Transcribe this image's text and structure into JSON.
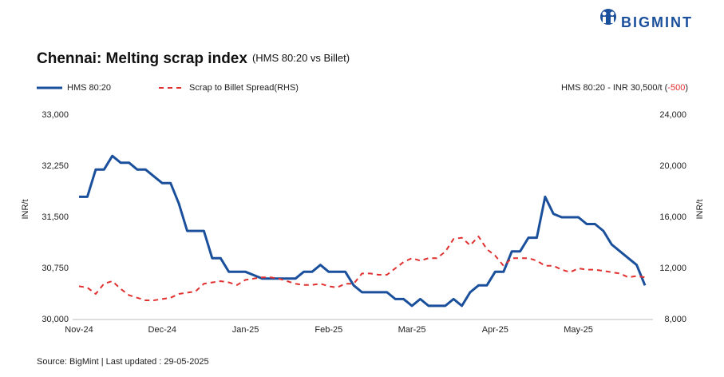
{
  "chart_data": {
    "type": "line",
    "logo": "BIGMINT",
    "title": "Chennai: Melting scrap index",
    "subtitle": "(HMS 80:20 vs Billet)",
    "annotation": {
      "text": "HMS 80:20 - INR 30,500/t (",
      "change": "-500",
      "close": ")"
    },
    "y_label": "INR/t",
    "y2_label": "INR/t",
    "source": "Source: BigMint | Last updated : 29-05-2025",
    "categories": [
      "Nov-24",
      null,
      null,
      null,
      null,
      null,
      null,
      null,
      null,
      null,
      "Dec-24",
      null,
      null,
      null,
      null,
      null,
      null,
      null,
      null,
      null,
      "Jan-25",
      null,
      null,
      null,
      null,
      null,
      null,
      null,
      null,
      null,
      "Feb-25",
      null,
      null,
      null,
      null,
      null,
      null,
      null,
      null,
      null,
      "Mar-25",
      null,
      null,
      null,
      null,
      null,
      null,
      null,
      null,
      null,
      "Apr-25",
      null,
      null,
      null,
      null,
      null,
      null,
      null,
      null,
      null,
      "May-25",
      null,
      null,
      null,
      null,
      null,
      null,
      null,
      null
    ],
    "series": [
      {
        "name": "HMS 80:20",
        "color": "#1a4f9c",
        "dash": false,
        "values": [
          31800,
          31800,
          32200,
          32200,
          32400,
          32300,
          32300,
          32200,
          32200,
          32100,
          32000,
          32000,
          31700,
          31300,
          31300,
          31300,
          30900,
          30900,
          30700,
          30700,
          30700,
          30650,
          30600,
          30600,
          30600,
          30600,
          30600,
          30700,
          30700,
          30800,
          30700,
          30700,
          30700,
          30500,
          30400,
          30400,
          30400,
          30400,
          30300,
          30300,
          30200,
          30300,
          30200,
          30200,
          30200,
          30300,
          30200,
          30400,
          30500,
          30500,
          30700,
          30700,
          31000,
          31000,
          31200,
          31200,
          31800,
          31550,
          31500,
          31500,
          31500,
          31400,
          31400,
          31300,
          31100,
          31000,
          30900,
          30800,
          30500
        ]
      },
      {
        "name": "Scrap to Billet Spread(RHS)",
        "color": "#e0302f",
        "dash": true,
        "axis": "y2",
        "values": [
          10600,
          10500,
          10000,
          10800,
          11000,
          10400,
          9900,
          9700,
          9500,
          9500,
          9600,
          9700,
          10000,
          10100,
          10200,
          10800,
          10900,
          11000,
          10900,
          10700,
          11100,
          11200,
          11300,
          11300,
          11200,
          11000,
          10800,
          10700,
          10700,
          10800,
          10600,
          10500,
          10800,
          10800,
          11600,
          11600,
          11500,
          11500,
          12000,
          12500,
          12800,
          12600,
          12800,
          12800,
          13300,
          14300,
          14400,
          13800,
          14500,
          13500,
          13000,
          12200,
          12800,
          12800,
          12800,
          12600,
          12200,
          12200,
          11900,
          11700,
          12000,
          11900,
          11900,
          11800,
          11700,
          11600,
          11300,
          11400,
          11300
        ]
      }
    ],
    "ylim": [
      30000,
      33000
    ],
    "yticks": [
      {
        "value": 30000,
        "label": "30,000"
      },
      {
        "value": 30750,
        "label": "30,750"
      },
      {
        "value": 31500,
        "label": "31,500"
      },
      {
        "value": 32250,
        "label": "32,250"
      },
      {
        "value": 33000,
        "label": "33,000"
      }
    ],
    "y2lim": [
      8000,
      24000
    ],
    "y2ticks": [
      {
        "value": 8000,
        "label": "8,000"
      },
      {
        "value": 12000,
        "label": "12,000"
      },
      {
        "value": 16000,
        "label": "16,000"
      },
      {
        "value": 20000,
        "label": "20,000"
      },
      {
        "value": 24000,
        "label": "24,000"
      }
    ],
    "grid": false,
    "legend": "top-left",
    "change_color": "#e0302f"
  }
}
